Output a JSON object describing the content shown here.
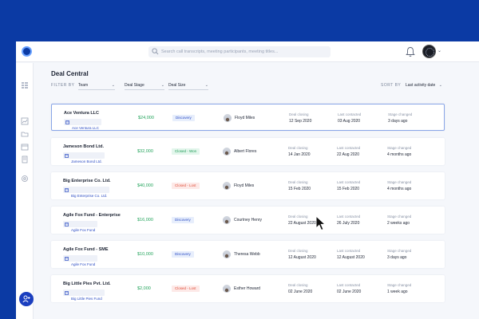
{
  "colors": {
    "brand_blue": "#0b3aa4",
    "amount_green": "#21a35a",
    "discovery": "#2b4cc4",
    "won": "#1f9d57",
    "lost": "#e0513d"
  },
  "header": {
    "search_placeholder": "Search call transcripts, meeting participants, meeting titles...",
    "icons": [
      "logo-icon",
      "search-icon",
      "bell-icon",
      "chevron-down-icon"
    ]
  },
  "sidebar": {
    "icons": [
      "list-icon",
      "chart-icon",
      "folder-icon",
      "calendar-icon",
      "document-icon",
      "settings-icon"
    ],
    "fab_icon": "add-user-icon"
  },
  "page": {
    "title": "Deal Central",
    "filter_by": "FILTER BY",
    "filters": [
      "Team",
      "Deal Stage",
      "Deal Size"
    ],
    "sort_by": "SORT BY",
    "sort_value": "Last activity date"
  },
  "labels": {
    "deal_closing": "Deal closing",
    "last_contacted": "Last contacted",
    "stage_changed": "Stage changed"
  },
  "deals": [
    {
      "name": "Ace Ventura LLC",
      "company": "Ace Ventura LLC",
      "amount": "$24,000",
      "stage": "Discovery",
      "stage_type": "discovery",
      "owner": "Floyd Miles",
      "closing": "12 Sep 2020",
      "contacted": "03 Aug 2020",
      "changed": "3 days ago"
    },
    {
      "name": "Jameson Bond Ltd.",
      "company": "Jameson Bond Ltd.",
      "amount": "$32,000",
      "stage": "Closed - Won",
      "stage_type": "won",
      "owner": "Albert Flores",
      "closing": "14 Jan 2020",
      "contacted": "22 Aug 2020",
      "changed": "4 months ago"
    },
    {
      "name": "Big Enterprise Co. Ltd.",
      "company": "Big Enterprise Co. Ltd.",
      "amount": "$40,000",
      "stage": "Closed - Lost",
      "stage_type": "lost",
      "owner": "Floyd Miles",
      "closing": "15 Feb 2020",
      "contacted": "15 Feb 2020",
      "changed": "4 months ago"
    },
    {
      "name": "Agile Fox Fund - Enterprise",
      "company": "Agile Fox Fund",
      "amount": "$16,000",
      "stage": "Discovery",
      "stage_type": "discovery",
      "owner": "Courtney Henry",
      "closing": "22 August 2020",
      "contacted": "26 July 2020",
      "changed": "2 weeks ago"
    },
    {
      "name": "Agile Fox Fund - SME",
      "company": "Agile Fox Fund",
      "amount": "$10,000",
      "stage": "Discovery",
      "stage_type": "discovery",
      "owner": "Theresa Webb",
      "closing": "12 August 2020",
      "contacted": "12 August 2020",
      "changed": "3 days ago"
    },
    {
      "name": "Big Little Pies Pvt. Ltd.",
      "company": "Big Little Pies Fund",
      "amount": "$2,000",
      "stage": "Closed - Lost",
      "stage_type": "lost",
      "owner": "Esther Howard",
      "closing": "02 June 2020",
      "contacted": "02 June 2020",
      "changed": "1 week ago"
    }
  ]
}
